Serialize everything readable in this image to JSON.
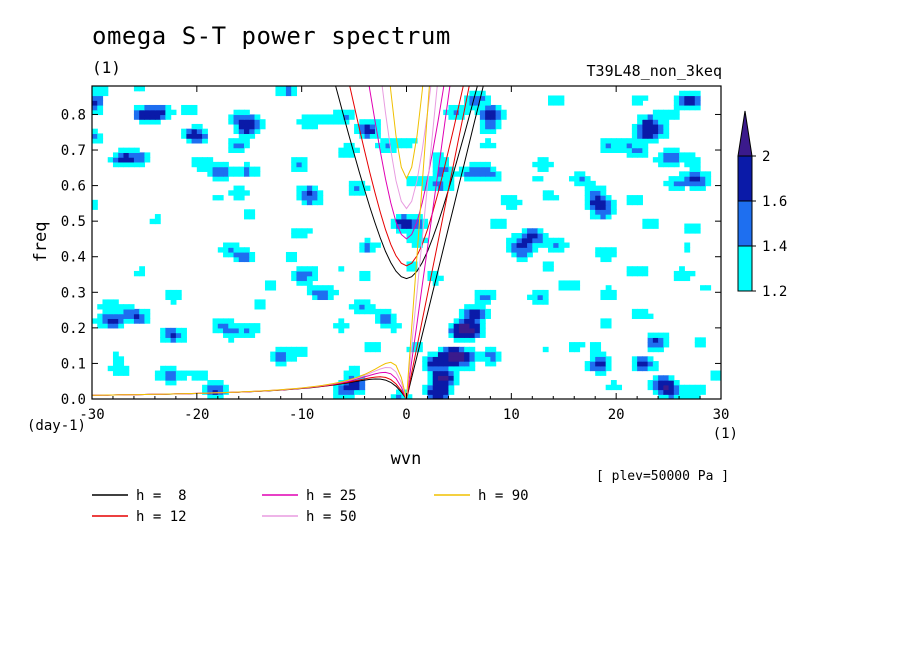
{
  "header": {
    "title": "omega S-T power spectrum",
    "subtitle": "(1)",
    "run": "T39L48_non_3keq",
    "note": "[ plev=50000 Pa ]"
  },
  "colors": {
    "background": "#ffffff",
    "contour_levels": [
      {
        "min": 1.2,
        "max": 1.4,
        "color": "#00ffff"
      },
      {
        "min": 1.4,
        "max": 1.6,
        "color": "#1e6ff0"
      },
      {
        "min": 1.6,
        "max": 2.0,
        "color": "#0a1aa8"
      },
      {
        "min": 2.0,
        "max": null,
        "color": "#3b1a8c"
      }
    ]
  },
  "chart_data": {
    "type": "heatmap",
    "title": "omega S-T power spectrum",
    "subtitle": "(1)",
    "xlabel": "wvn",
    "xunit": "(1)",
    "ylabel": "freq",
    "yunit": "(day-1)",
    "xlim": [
      -30,
      30
    ],
    "ylim": [
      0,
      0.88
    ],
    "xticks": [
      "-30",
      "-20",
      "-10",
      "0",
      "10",
      "20",
      "30"
    ],
    "yticks": [
      "0.0",
      "0.1",
      "0.2",
      "0.3",
      "0.4",
      "0.5",
      "0.6",
      "0.7",
      "0.8"
    ],
    "colorbar": {
      "levels": [
        "1.2",
        "1.4",
        "1.6",
        "2"
      ],
      "extend": "max"
    },
    "legend": [
      {
        "label": "h =  8",
        "h": 8,
        "color": "#000000"
      },
      {
        "label": "h = 12",
        "h": 12,
        "color": "#e60000"
      },
      {
        "label": "h = 25",
        "h": 25,
        "color": "#e000b4"
      },
      {
        "label": "h = 50",
        "h": 50,
        "color": "#e89ce0"
      },
      {
        "label": "h = 90",
        "h": 90,
        "color": "#f0c000"
      }
    ],
    "dispersion_curves": [
      "kelvin",
      "inertia-gravity n=1",
      "equatorial rossby n=1"
    ],
    "blobs": [
      {
        "x": 3.5,
        "y": 0.06,
        "v": 2.1
      },
      {
        "x": 4.5,
        "y": 0.12,
        "v": 2.1
      },
      {
        "x": 5.5,
        "y": 0.19,
        "v": 2.0
      },
      {
        "x": 6.5,
        "y": 0.24,
        "v": 1.8
      },
      {
        "x": 3.0,
        "y": 0.02,
        "v": 2.0
      },
      {
        "x": 7.5,
        "y": 0.29,
        "v": 1.5
      },
      {
        "x": 2.5,
        "y": 0.1,
        "v": 1.6
      },
      {
        "x": -25,
        "y": 0.8,
        "v": 1.7
      },
      {
        "x": -30,
        "y": 0.84,
        "v": 1.6
      },
      {
        "x": -20,
        "y": 0.74,
        "v": 1.5
      },
      {
        "x": -28,
        "y": 0.22,
        "v": 1.6
      },
      {
        "x": -12,
        "y": 0.12,
        "v": 1.5
      },
      {
        "x": -2,
        "y": 0.23,
        "v": 1.5
      },
      {
        "x": 12,
        "y": 0.46,
        "v": 1.6
      },
      {
        "x": 8,
        "y": 0.8,
        "v": 1.5
      },
      {
        "x": 27,
        "y": 0.84,
        "v": 1.6
      },
      {
        "x": -5,
        "y": 0.04,
        "v": 1.7
      },
      {
        "x": 18,
        "y": 0.55,
        "v": 1.4
      },
      {
        "x": 25,
        "y": 0.03,
        "v": 1.6
      },
      {
        "x": -17,
        "y": 0.42,
        "v": 1.4
      },
      {
        "x": -9,
        "y": 0.56,
        "v": 1.4
      },
      {
        "x": 13,
        "y": 0.66,
        "v": 1.4
      },
      {
        "x": 22,
        "y": 0.36,
        "v": 1.4
      },
      {
        "x": -24,
        "y": 0.5,
        "v": 1.3
      },
      {
        "x": 3,
        "y": 0.68,
        "v": 1.3
      },
      {
        "x": -14,
        "y": 0.27,
        "v": 1.3
      },
      {
        "x": 16,
        "y": 0.15,
        "v": 1.3
      },
      {
        "x": 28,
        "y": 0.16,
        "v": 1.3
      },
      {
        "x": -22,
        "y": 0.07,
        "v": 1.3
      },
      {
        "x": 21,
        "y": 0.72,
        "v": 1.3
      }
    ]
  },
  "legend_labels": [
    "h =  8",
    "h = 12",
    "h = 25",
    "h = 50",
    "h = 90"
  ]
}
